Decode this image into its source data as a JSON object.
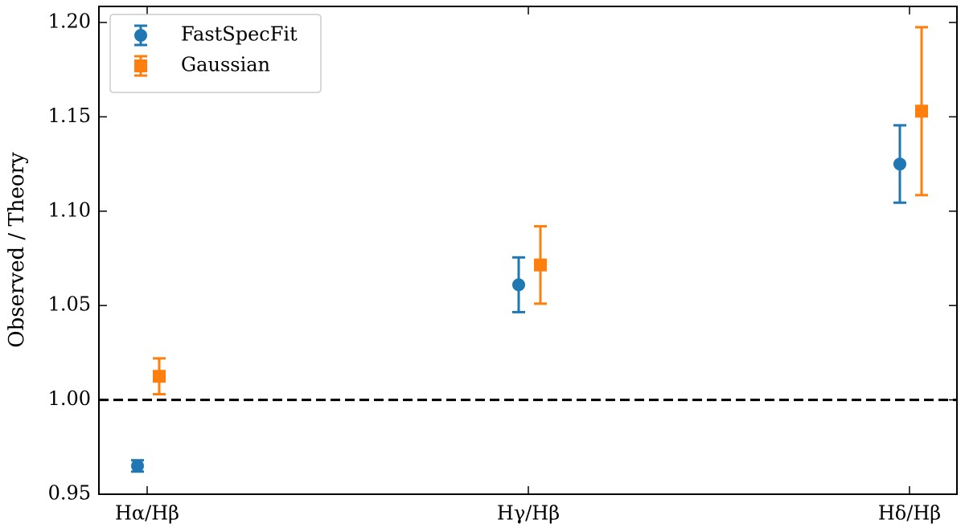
{
  "chart_data": {
    "type": "errorbar",
    "ylabel": "Observed / Theory",
    "categories": [
      "Hα/Hβ",
      "Hγ/Hβ",
      "Hδ/Hβ"
    ],
    "series": [
      {
        "name": "FastSpecFit",
        "color": "#1f77b4",
        "marker": "circle",
        "values": [
          0.965,
          1.061,
          1.125
        ],
        "errors": [
          0.003,
          0.0145,
          0.0205
        ]
      },
      {
        "name": "Gaussian",
        "color": "#ff7f0e",
        "marker": "square",
        "values": [
          1.0125,
          1.0715,
          1.153
        ],
        "errors": [
          0.0095,
          0.0205,
          0.0445
        ]
      }
    ],
    "hline": 1.0,
    "ylim": [
      0.95,
      1.2085
    ],
    "yticks": [
      0.95,
      {
        "value": 1.0,
        "label": "1.00"
      },
      1.05,
      {
        "value": 1.1,
        "label": "1.10"
      },
      1.15,
      {
        "value": 1.2,
        "label": "1.20"
      }
    ],
    "legend": "upper left"
  }
}
